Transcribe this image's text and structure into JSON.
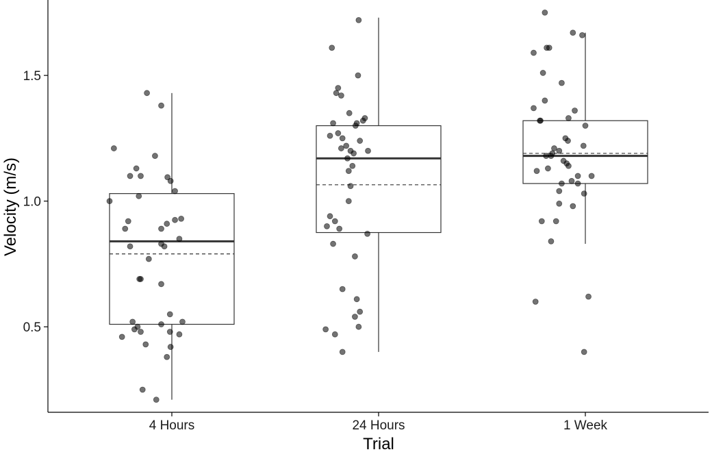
{
  "chart_data": {
    "type": "box",
    "title": "",
    "xlabel": "Trial",
    "ylabel": "Velocity (m/s)",
    "categories": [
      "4 Hours",
      "24 Hours",
      "1 Week"
    ],
    "y_ticks": [
      0.5,
      1.0,
      1.5
    ],
    "y_tick_labels": [
      "0.5",
      "1.0",
      "1.5"
    ],
    "ylim": [
      0.16,
      1.8
    ],
    "grid": false,
    "legend": "none",
    "colors": {
      "box_stroke": "#333333",
      "points": "#555555",
      "axis": "#000000"
    },
    "boxes": [
      {
        "category": "4 Hours",
        "lower_whisker": 0.21,
        "q1": 0.51,
        "median": 0.84,
        "q3": 1.03,
        "upper_whisker": 1.43,
        "mean": 0.79
      },
      {
        "category": "24 Hours",
        "lower_whisker": 0.4,
        "q1": 0.875,
        "median": 1.17,
        "q3": 1.3,
        "upper_whisker": 1.73,
        "mean": 1.065
      },
      {
        "category": "1 Week",
        "lower_whisker": 0.83,
        "q1": 1.07,
        "median": 1.18,
        "q3": 1.32,
        "upper_whisker": 1.67,
        "mean": 1.19
      }
    ],
    "points": [
      [
        {
          "jitter": 0.6,
          "y": 1.43
        },
        {
          "jitter": 0.83,
          "y": 1.38
        },
        {
          "jitter": 0.07,
          "y": 1.21
        },
        {
          "jitter": 0.73,
          "y": 1.18
        },
        {
          "jitter": 0.43,
          "y": 1.13
        },
        {
          "jitter": 0.33,
          "y": 1.1
        },
        {
          "jitter": 0.5,
          "y": 1.1
        },
        {
          "jitter": 0.93,
          "y": 1.095
        },
        {
          "jitter": 0.98,
          "y": 1.08
        },
        {
          "jitter": 1.05,
          "y": 1.04
        },
        {
          "jitter": 0.0,
          "y": 1.0
        },
        {
          "jitter": 0.47,
          "y": 1.02
        },
        {
          "jitter": 0.3,
          "y": 0.92
        },
        {
          "jitter": 1.15,
          "y": 0.93
        },
        {
          "jitter": 1.05,
          "y": 0.925
        },
        {
          "jitter": 0.92,
          "y": 0.91
        },
        {
          "jitter": 0.83,
          "y": 0.89
        },
        {
          "jitter": 0.25,
          "y": 0.89
        },
        {
          "jitter": 1.12,
          "y": 0.85
        },
        {
          "jitter": 0.83,
          "y": 0.83
        },
        {
          "jitter": 0.88,
          "y": 0.82
        },
        {
          "jitter": 0.33,
          "y": 0.82
        },
        {
          "jitter": 0.63,
          "y": 0.77
        },
        {
          "jitter": 0.5,
          "y": 0.69
        },
        {
          "jitter": 0.48,
          "y": 0.69
        },
        {
          "jitter": 0.83,
          "y": 0.67
        },
        {
          "jitter": 0.97,
          "y": 0.55
        },
        {
          "jitter": 1.17,
          "y": 0.52
        },
        {
          "jitter": 0.37,
          "y": 0.52
        },
        {
          "jitter": 0.83,
          "y": 0.51
        },
        {
          "jitter": 0.45,
          "y": 0.5
        },
        {
          "jitter": 0.5,
          "y": 0.48
        },
        {
          "jitter": 0.97,
          "y": 0.48
        },
        {
          "jitter": 0.4,
          "y": 0.49
        },
        {
          "jitter": 1.12,
          "y": 0.47
        },
        {
          "jitter": 0.2,
          "y": 0.46
        },
        {
          "jitter": 0.58,
          "y": 0.43
        },
        {
          "jitter": 0.98,
          "y": 0.42
        },
        {
          "jitter": 0.92,
          "y": 0.38
        },
        {
          "jitter": 0.53,
          "y": 0.25
        },
        {
          "jitter": 0.75,
          "y": 0.21
        }
      ],
      [
        {
          "jitter": 0.68,
          "y": 1.72
        },
        {
          "jitter": 0.25,
          "y": 1.61
        },
        {
          "jitter": 0.67,
          "y": 1.5
        },
        {
          "jitter": 0.35,
          "y": 1.45
        },
        {
          "jitter": 0.32,
          "y": 1.43
        },
        {
          "jitter": 0.4,
          "y": 1.42
        },
        {
          "jitter": 0.53,
          "y": 1.35
        },
        {
          "jitter": 0.78,
          "y": 1.33
        },
        {
          "jitter": 0.75,
          "y": 1.32
        },
        {
          "jitter": 0.65,
          "y": 1.31
        },
        {
          "jitter": 0.27,
          "y": 1.31
        },
        {
          "jitter": 0.63,
          "y": 1.3
        },
        {
          "jitter": 0.22,
          "y": 1.26
        },
        {
          "jitter": 0.42,
          "y": 1.25
        },
        {
          "jitter": 0.35,
          "y": 1.27
        },
        {
          "jitter": 0.48,
          "y": 1.22
        },
        {
          "jitter": 0.7,
          "y": 1.24
        },
        {
          "jitter": 0.55,
          "y": 1.2
        },
        {
          "jitter": 0.6,
          "y": 1.19
        },
        {
          "jitter": 0.4,
          "y": 1.21
        },
        {
          "jitter": 0.83,
          "y": 1.2
        },
        {
          "jitter": 0.5,
          "y": 1.17
        },
        {
          "jitter": 0.52,
          "y": 1.12
        },
        {
          "jitter": 0.58,
          "y": 1.14
        },
        {
          "jitter": 0.55,
          "y": 1.06
        },
        {
          "jitter": 0.52,
          "y": 1.0
        },
        {
          "jitter": 0.22,
          "y": 0.94
        },
        {
          "jitter": 0.3,
          "y": 0.92
        },
        {
          "jitter": 0.17,
          "y": 0.9
        },
        {
          "jitter": 0.37,
          "y": 0.89
        },
        {
          "jitter": 0.82,
          "y": 0.87
        },
        {
          "jitter": 0.27,
          "y": 0.83
        },
        {
          "jitter": 0.62,
          "y": 0.78
        },
        {
          "jitter": 0.42,
          "y": 0.65
        },
        {
          "jitter": 0.65,
          "y": 0.61
        },
        {
          "jitter": 0.7,
          "y": 0.56
        },
        {
          "jitter": 0.62,
          "y": 0.54
        },
        {
          "jitter": 0.68,
          "y": 0.5
        },
        {
          "jitter": 0.15,
          "y": 0.49
        },
        {
          "jitter": 0.3,
          "y": 0.47
        },
        {
          "jitter": 0.42,
          "y": 0.4
        }
      ],
      [
        {
          "jitter": 0.35,
          "y": 1.75
        },
        {
          "jitter": 0.8,
          "y": 1.67
        },
        {
          "jitter": 0.95,
          "y": 1.66
        },
        {
          "jitter": 0.42,
          "y": 1.61
        },
        {
          "jitter": 0.38,
          "y": 1.61
        },
        {
          "jitter": 0.17,
          "y": 1.59
        },
        {
          "jitter": 0.32,
          "y": 1.51
        },
        {
          "jitter": 0.62,
          "y": 1.47
        },
        {
          "jitter": 0.35,
          "y": 1.4
        },
        {
          "jitter": 0.17,
          "y": 1.37
        },
        {
          "jitter": 0.83,
          "y": 1.36
        },
        {
          "jitter": 0.73,
          "y": 1.33
        },
        {
          "jitter": 0.27,
          "y": 1.32
        },
        {
          "jitter": 0.28,
          "y": 1.32
        },
        {
          "jitter": 0.68,
          "y": 1.25
        },
        {
          "jitter": 0.72,
          "y": 1.24
        },
        {
          "jitter": 0.5,
          "y": 1.21
        },
        {
          "jitter": 0.58,
          "y": 1.2
        },
        {
          "jitter": 0.47,
          "y": 1.19
        },
        {
          "jitter": 0.37,
          "y": 1.18
        },
        {
          "jitter": 0.45,
          "y": 1.18
        },
        {
          "jitter": 0.65,
          "y": 1.16
        },
        {
          "jitter": 0.7,
          "y": 1.15
        },
        {
          "jitter": 0.4,
          "y": 1.13
        },
        {
          "jitter": 0.22,
          "y": 1.12
        },
        {
          "jitter": 0.73,
          "y": 1.14
        },
        {
          "jitter": 1.0,
          "y": 1.3
        },
        {
          "jitter": 0.97,
          "y": 1.22
        },
        {
          "jitter": 1.1,
          "y": 1.1
        },
        {
          "jitter": 0.88,
          "y": 1.1
        },
        {
          "jitter": 0.78,
          "y": 1.08
        },
        {
          "jitter": 0.88,
          "y": 1.07
        },
        {
          "jitter": 0.62,
          "y": 1.07
        },
        {
          "jitter": 0.58,
          "y": 1.04
        },
        {
          "jitter": 0.98,
          "y": 1.03
        },
        {
          "jitter": 0.58,
          "y": 0.99
        },
        {
          "jitter": 0.8,
          "y": 0.98
        },
        {
          "jitter": 0.53,
          "y": 0.92
        },
        {
          "jitter": 0.3,
          "y": 0.92
        },
        {
          "jitter": 0.45,
          "y": 0.84
        },
        {
          "jitter": 1.05,
          "y": 0.62
        },
        {
          "jitter": 0.2,
          "y": 0.6
        },
        {
          "jitter": 0.98,
          "y": 0.4
        }
      ]
    ]
  }
}
